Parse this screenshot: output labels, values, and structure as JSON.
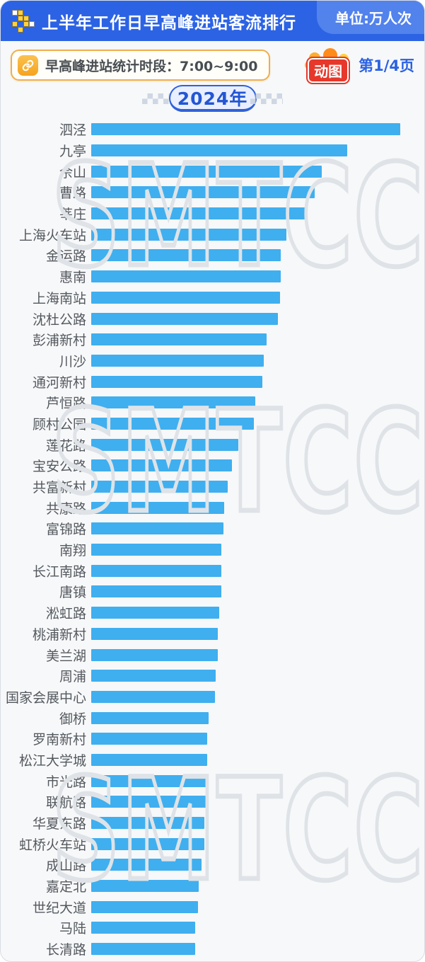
{
  "header": {
    "title": "上半年工作日早高峰进站客流排行",
    "unit_label": "单位:万人次"
  },
  "subheader": {
    "note": "早高峰进站统计时段：7:00~9:00",
    "animated_badge": "动图",
    "page_label": "第1/4页"
  },
  "year_badge": "2024年",
  "watermark": "SMTCC",
  "colors": {
    "header_blue": "#2c63e4",
    "unit_tab_blue": "#5282ec",
    "bar_blue": "#3fafef",
    "year_text_blue": "#2356d4",
    "note_border_orange": "#f0ae4e",
    "badge_red": "#e6382b",
    "page_text_blue": "#2b62e3",
    "watermark_gray": "#dfe3e7",
    "background": "#f7f8f9"
  },
  "chart_data": {
    "type": "bar",
    "orientation": "horizontal",
    "title": "上半年工作日早高峰进站客流排行",
    "subtitle": "早高峰进站统计时段：7:00~9:00",
    "year": "2024年",
    "unit": "万人次",
    "axis_labels_shown": false,
    "value_note": "no numeric axis or data labels visible; values are bar lengths as percent of longest bar (泗泾 = 100)",
    "categories": [
      "泗泾",
      "九亭",
      "佘山",
      "曹路",
      "莘庄",
      "上海火车站",
      "金运路",
      "惠南",
      "上海南站",
      "沈杜公路",
      "彭浦新村",
      "川沙",
      "通河新村",
      "芦恒路",
      "顾村公园",
      "莲花路",
      "宝安公路",
      "共富新村",
      "共康路",
      "富锦路",
      "南翔",
      "长江南路",
      "唐镇",
      "淞虹路",
      "桃浦新村",
      "美兰湖",
      "周浦",
      "国家会展中心",
      "御桥",
      "罗南新村",
      "松江大学城",
      "市光路",
      "联航路",
      "华夏东路",
      "虹桥火车站",
      "成山路",
      "嘉定北",
      "世纪大道",
      "马陆",
      "长清路"
    ],
    "values_pct_of_max": [
      100,
      82.9,
      74.6,
      72.4,
      70.1,
      63.2,
      61.3,
      61.3,
      61.2,
      60.3,
      56.8,
      55.9,
      55.4,
      53.0,
      52.6,
      47.7,
      45.5,
      44.2,
      43.1,
      42.8,
      42.2,
      42.2,
      42.1,
      41.3,
      40.9,
      40.9,
      40.2,
      40.0,
      38.0,
      37.6,
      37.5,
      37.5,
      37.4,
      36.5,
      36.5,
      35.8,
      34.7,
      34.5,
      33.6,
      33.6
    ],
    "legend": null,
    "grid": false
  }
}
